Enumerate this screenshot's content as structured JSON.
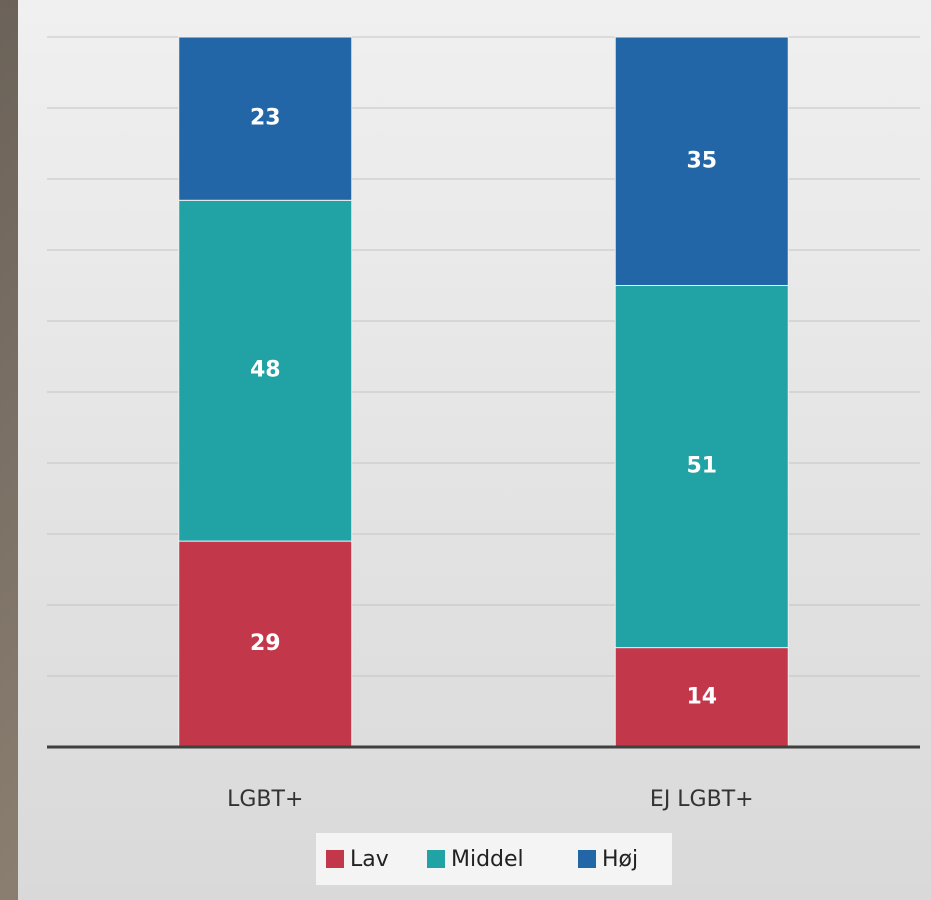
{
  "chart_data": {
    "type": "stacked_bar",
    "categories": [
      "LGBT+",
      "EJ LGBT+"
    ],
    "series": [
      {
        "name": "Lav",
        "color": "#c3374a",
        "values": [
          29,
          14
        ]
      },
      {
        "name": "Middel",
        "color": "#21a3a6",
        "values": [
          48,
          51
        ]
      },
      {
        "name": "Høj",
        "color": "#2266a8",
        "values": [
          23,
          35
        ]
      }
    ],
    "ylim": [
      0,
      100
    ],
    "yticks": [
      0,
      10,
      20,
      30,
      40,
      50,
      60,
      70,
      80,
      90,
      100
    ],
    "grid": true,
    "legend": "bottom"
  }
}
